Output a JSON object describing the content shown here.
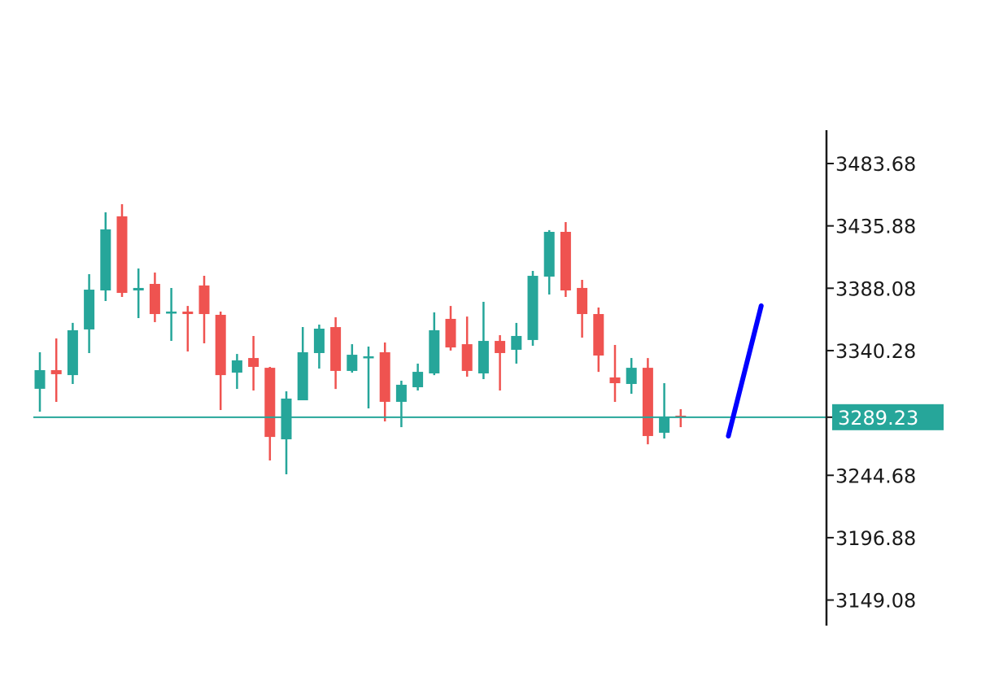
{
  "chart_data": {
    "type": "candlestick",
    "title": "",
    "xlabel": "",
    "ylabel": "",
    "grid": false,
    "legend": null,
    "ylim": [
      3120,
      3520
    ],
    "y_ticks": [
      3483.68,
      3435.88,
      3388.08,
      3340.28,
      3244.68,
      3196.88,
      3149.08
    ],
    "y_tick_labels": [
      "3483.68",
      "3435.88",
      "3388.08",
      "3340.28",
      "3244.68",
      "3196.88",
      "3149.08"
    ],
    "current_price": 3289.23,
    "current_price_label": "3289.23",
    "colors": {
      "up": "#26a69a",
      "down": "#ef5350",
      "price_line": "#26a69a",
      "projection": "#0000ff",
      "axis": "#1a1a1a"
    },
    "candles": [
      {
        "o": 3311.0,
        "h": 3339.0,
        "l": 3293.5,
        "c": 3325.3
      },
      {
        "o": 3325.3,
        "h": 3349.6,
        "l": 3301.0,
        "c": 3322.2
      },
      {
        "o": 3321.5,
        "h": 3361.5,
        "l": 3314.7,
        "c": 3355.9
      },
      {
        "o": 3356.5,
        "h": 3398.9,
        "l": 3338.4,
        "c": 3387.0
      },
      {
        "o": 3386.4,
        "h": 3446.3,
        "l": 3378.3,
        "c": 3433.2
      },
      {
        "o": 3443.2,
        "h": 3452.5,
        "l": 3381.4,
        "c": 3384.5
      },
      {
        "o": 3386.4,
        "h": 3403.2,
        "l": 3365.2,
        "c": 3388.3
      },
      {
        "o": 3391.4,
        "h": 3400.1,
        "l": 3362.1,
        "c": 3368.3
      },
      {
        "o": 3369.0,
        "h": 3388.3,
        "l": 3347.7,
        "c": 3370.2
      },
      {
        "o": 3370.2,
        "h": 3374.5,
        "l": 3339.6,
        "c": 3368.3
      },
      {
        "o": 3390.2,
        "h": 3397.6,
        "l": 3345.9,
        "c": 3368.3
      },
      {
        "o": 3367.7,
        "h": 3370.2,
        "l": 3294.7,
        "c": 3321.5
      },
      {
        "o": 3323.4,
        "h": 3337.7,
        "l": 3310.9,
        "c": 3332.8
      },
      {
        "o": 3334.6,
        "h": 3351.5,
        "l": 3309.7,
        "c": 3327.8
      },
      {
        "o": 3327.1,
        "h": 3327.8,
        "l": 3256.1,
        "c": 3274.1
      },
      {
        "o": 3272.3,
        "h": 3309.1,
        "l": 3245.5,
        "c": 3303.5
      },
      {
        "o": 3302.2,
        "h": 3358.3,
        "l": 3302.2,
        "c": 3339.0
      },
      {
        "o": 3338.4,
        "h": 3360.2,
        "l": 3326.5,
        "c": 3357.1
      },
      {
        "o": 3358.3,
        "h": 3365.8,
        "l": 3310.9,
        "c": 3324.7
      },
      {
        "o": 3324.7,
        "h": 3345.2,
        "l": 3323.4,
        "c": 3337.1
      },
      {
        "o": 3334.6,
        "h": 3343.4,
        "l": 3296.0,
        "c": 3335.9
      },
      {
        "o": 3339.0,
        "h": 3346.5,
        "l": 3286.0,
        "c": 3301.0
      },
      {
        "o": 3301.0,
        "h": 3317.2,
        "l": 3281.6,
        "c": 3314.1
      },
      {
        "o": 3312.2,
        "h": 3330.3,
        "l": 3309.7,
        "c": 3324.0
      },
      {
        "o": 3322.8,
        "h": 3369.6,
        "l": 3321.5,
        "c": 3355.9
      },
      {
        "o": 3364.6,
        "h": 3374.5,
        "l": 3340.3,
        "c": 3342.7
      },
      {
        "o": 3345.2,
        "h": 3366.4,
        "l": 3320.3,
        "c": 3324.7
      },
      {
        "o": 3322.8,
        "h": 3377.7,
        "l": 3318.4,
        "c": 3347.7
      },
      {
        "o": 3347.7,
        "h": 3352.1,
        "l": 3309.7,
        "c": 3338.4
      },
      {
        "o": 3340.9,
        "h": 3361.5,
        "l": 3330.3,
        "c": 3351.5
      },
      {
        "o": 3348.4,
        "h": 3401.4,
        "l": 3344.0,
        "c": 3397.6
      },
      {
        "o": 3397.0,
        "h": 3432.6,
        "l": 3383.3,
        "c": 3431.3
      },
      {
        "o": 3431.3,
        "h": 3438.8,
        "l": 3381.4,
        "c": 3386.4
      },
      {
        "o": 3388.3,
        "h": 3394.5,
        "l": 3350.2,
        "c": 3368.3
      },
      {
        "o": 3368.3,
        "h": 3373.3,
        "l": 3324.0,
        "c": 3336.5
      },
      {
        "o": 3319.7,
        "h": 3344.6,
        "l": 3301.0,
        "c": 3315.3
      },
      {
        "o": 3314.7,
        "h": 3334.6,
        "l": 3307.2,
        "c": 3327.1
      },
      {
        "o": 3327.1,
        "h": 3334.6,
        "l": 3268.5,
        "c": 3274.8
      },
      {
        "o": 3277.3,
        "h": 3315.3,
        "l": 3272.9,
        "c": 3289.1
      },
      {
        "o": 3290.4,
        "h": 3295.4,
        "l": 3281.6,
        "c": 3289.2
      }
    ],
    "projection_line": {
      "from": {
        "bar": 41.9,
        "price": 3274.8
      },
      "to": {
        "bar": 43.9,
        "price": 3374.6
      }
    }
  }
}
